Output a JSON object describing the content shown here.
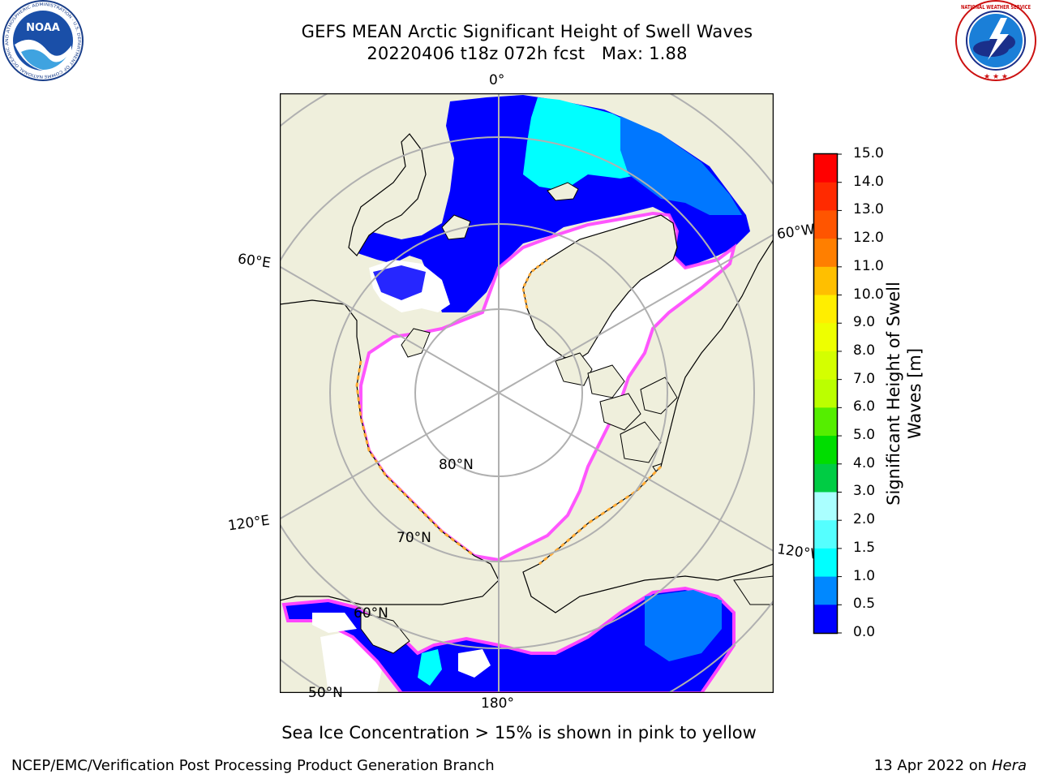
{
  "header": {
    "title_line1": "GEFS MEAN Arctic Significant Height of Swell Waves",
    "title_line2": "20220406 t18z 072h fcst   Max: 1.88"
  },
  "logos": {
    "left": {
      "name": "NOAA",
      "ring_text": "NATIONAL OCEANIC AND ATMOSPHERIC ADMINISTRATION · U.S. DEPARTMENT OF COMMERCE"
    },
    "right": {
      "ring_text": "NATIONAL WEATHER SERVICE"
    }
  },
  "map": {
    "longitude_labels": [
      "0°",
      "60°E",
      "120°E",
      "180°",
      "60°W",
      "120°W"
    ],
    "latitude_labels": [
      "80°N",
      "70°N",
      "60°N",
      "50°N"
    ]
  },
  "colorbar": {
    "title": "Significant Height of Swell Waves [m]",
    "ticks": [
      "15.0",
      "14.0",
      "13.0",
      "12.0",
      "11.0",
      "10.0",
      "9.0",
      "8.0",
      "7.0",
      "6.0",
      "5.0",
      "4.0",
      "3.0",
      "2.0",
      "1.5",
      "1.0",
      "0.5",
      "0.0"
    ],
    "colors_top_to_bottom": [
      "#ff0000",
      "#ff2a00",
      "#ff5500",
      "#ff7f00",
      "#ff9f00",
      "#ffbf00",
      "#ffee00",
      "#eeff00",
      "#d4ff00",
      "#bbff00",
      "#55ee00",
      "#00dd00",
      "#00cc44",
      "#44ee77",
      "#aaffff",
      "#55ffff",
      "#00ffff",
      "#0088ff",
      "#0000ff"
    ]
  },
  "colors": {
    "land": "#efefdc",
    "ocean_blue": "#0000ff",
    "ocean_mid": "#0077ff",
    "ocean_cyan": "#00ffff",
    "ice_white": "#ffffff",
    "ice_edge_pink": "#ff44ff",
    "ice_edge_orange": "#ffaa33",
    "grid": "#b0b0b0"
  },
  "subtitle": "Sea Ice Concentration > 15% is shown in pink to yellow",
  "footer": {
    "left": "NCEP/EMC/Verification Post Processing Product Generation Branch",
    "right_date": "13 Apr 2022 on",
    "right_host": "Hera"
  }
}
